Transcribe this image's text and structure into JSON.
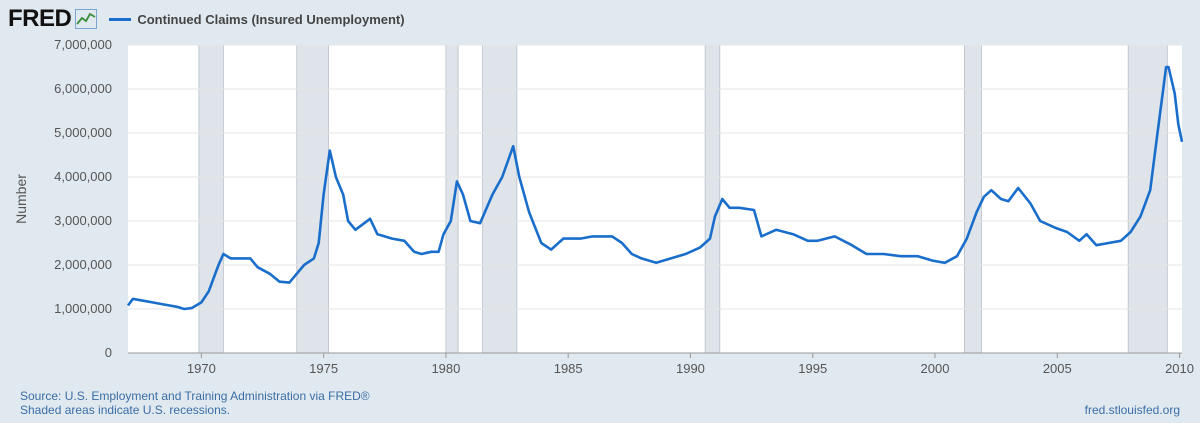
{
  "header": {
    "logo": "FRED",
    "logo_icon": "line-chart-icon"
  },
  "chart_data": {
    "type": "line",
    "series": [
      {
        "name": "Continued Claims (Insured Unemployment)",
        "color": "#1a6ecb",
        "points": [
          [
            1967.0,
            1080000
          ],
          [
            1967.2,
            1230000
          ],
          [
            1967.5,
            1200000
          ],
          [
            1968.0,
            1150000
          ],
          [
            1968.5,
            1100000
          ],
          [
            1969.0,
            1050000
          ],
          [
            1969.3,
            1000000
          ],
          [
            1969.6,
            1020000
          ],
          [
            1970.0,
            1150000
          ],
          [
            1970.3,
            1400000
          ],
          [
            1970.5,
            1700000
          ],
          [
            1970.7,
            2000000
          ],
          [
            1970.9,
            2250000
          ],
          [
            1971.2,
            2150000
          ],
          [
            1971.6,
            2150000
          ],
          [
            1972.0,
            2150000
          ],
          [
            1972.3,
            1950000
          ],
          [
            1972.8,
            1800000
          ],
          [
            1973.2,
            1620000
          ],
          [
            1973.6,
            1600000
          ],
          [
            1973.9,
            1800000
          ],
          [
            1974.2,
            2000000
          ],
          [
            1974.6,
            2150000
          ],
          [
            1974.8,
            2500000
          ],
          [
            1975.0,
            3600000
          ],
          [
            1975.25,
            4600000
          ],
          [
            1975.5,
            4000000
          ],
          [
            1975.8,
            3600000
          ],
          [
            1976.0,
            3000000
          ],
          [
            1976.3,
            2800000
          ],
          [
            1976.9,
            3050000
          ],
          [
            1977.2,
            2700000
          ],
          [
            1977.8,
            2600000
          ],
          [
            1978.3,
            2550000
          ],
          [
            1978.7,
            2300000
          ],
          [
            1979.0,
            2250000
          ],
          [
            1979.4,
            2300000
          ],
          [
            1979.7,
            2300000
          ],
          [
            1979.9,
            2700000
          ],
          [
            1980.2,
            3000000
          ],
          [
            1980.45,
            3900000
          ],
          [
            1980.7,
            3600000
          ],
          [
            1981.0,
            3000000
          ],
          [
            1981.4,
            2950000
          ],
          [
            1981.9,
            3600000
          ],
          [
            1982.3,
            4000000
          ],
          [
            1982.75,
            4700000
          ],
          [
            1983.0,
            4000000
          ],
          [
            1983.4,
            3200000
          ],
          [
            1983.9,
            2500000
          ],
          [
            1984.3,
            2350000
          ],
          [
            1984.8,
            2600000
          ],
          [
            1985.5,
            2600000
          ],
          [
            1986.0,
            2650000
          ],
          [
            1986.8,
            2650000
          ],
          [
            1987.2,
            2500000
          ],
          [
            1987.6,
            2250000
          ],
          [
            1988.0,
            2150000
          ],
          [
            1988.6,
            2050000
          ],
          [
            1989.2,
            2150000
          ],
          [
            1989.8,
            2250000
          ],
          [
            1990.4,
            2400000
          ],
          [
            1990.8,
            2600000
          ],
          [
            1991.0,
            3100000
          ],
          [
            1991.3,
            3500000
          ],
          [
            1991.6,
            3300000
          ],
          [
            1992.0,
            3300000
          ],
          [
            1992.6,
            3250000
          ],
          [
            1992.9,
            2650000
          ],
          [
            1993.5,
            2800000
          ],
          [
            1994.2,
            2700000
          ],
          [
            1994.8,
            2550000
          ],
          [
            1995.2,
            2550000
          ],
          [
            1995.9,
            2650000
          ],
          [
            1996.6,
            2450000
          ],
          [
            1997.2,
            2250000
          ],
          [
            1997.9,
            2250000
          ],
          [
            1998.6,
            2200000
          ],
          [
            1999.3,
            2200000
          ],
          [
            1999.9,
            2100000
          ],
          [
            2000.4,
            2050000
          ],
          [
            2000.9,
            2200000
          ],
          [
            2001.3,
            2600000
          ],
          [
            2001.7,
            3200000
          ],
          [
            2002.0,
            3550000
          ],
          [
            2002.3,
            3700000
          ],
          [
            2002.7,
            3500000
          ],
          [
            2003.0,
            3450000
          ],
          [
            2003.4,
            3750000
          ],
          [
            2003.9,
            3400000
          ],
          [
            2004.3,
            3000000
          ],
          [
            2004.9,
            2850000
          ],
          [
            2005.4,
            2750000
          ],
          [
            2005.9,
            2550000
          ],
          [
            2006.2,
            2700000
          ],
          [
            2006.6,
            2450000
          ],
          [
            2007.1,
            2500000
          ],
          [
            2007.6,
            2550000
          ],
          [
            2008.0,
            2750000
          ],
          [
            2008.4,
            3100000
          ],
          [
            2008.8,
            3700000
          ],
          [
            2009.1,
            5000000
          ],
          [
            2009.45,
            6500000
          ],
          [
            2009.55,
            6500000
          ],
          [
            2009.8,
            5900000
          ],
          [
            2009.95,
            5200000
          ],
          [
            2010.1,
            4800000
          ]
        ]
      }
    ],
    "xlim": [
      1967.0,
      2010.1
    ],
    "ylim": [
      0,
      7000000
    ],
    "xticks": [
      1970,
      1975,
      1980,
      1985,
      1990,
      1995,
      2000,
      2005,
      2010
    ],
    "xtick_labels": [
      "1970",
      "1975",
      "1980",
      "1985",
      "1990",
      "1995",
      "2000",
      "2005",
      "2010"
    ],
    "yticks": [
      0,
      1000000,
      2000000,
      3000000,
      4000000,
      5000000,
      6000000,
      7000000
    ],
    "ytick_labels": [
      "0",
      "1,000,000",
      "2,000,000",
      "3,000,000",
      "4,000,000",
      "5,000,000",
      "6,000,000",
      "7,000,000"
    ],
    "ylabel": "Number",
    "xlabel": "",
    "recessions": [
      [
        1969.9,
        1970.9
      ],
      [
        1973.9,
        1975.2
      ],
      [
        1980.0,
        1980.5
      ],
      [
        1981.5,
        1982.9
      ],
      [
        1990.6,
        1991.2
      ],
      [
        2001.2,
        2001.9
      ],
      [
        2007.9,
        2009.5
      ]
    ],
    "grid": true,
    "legend": "top-left",
    "colors": {
      "line": "#1a6ecb",
      "recession": "#dfe4ea",
      "plot_bg": "#ffffff",
      "page_bg": "#e1e9f0",
      "grid": "#e6e6e6",
      "footer_text": "#3a6ea5"
    }
  },
  "footer": {
    "source": "Source: U.S. Employment and Training Administration via FRED®",
    "note": "Shaded areas indicate U.S. recessions.",
    "site": "fred.stlouisfed.org"
  }
}
